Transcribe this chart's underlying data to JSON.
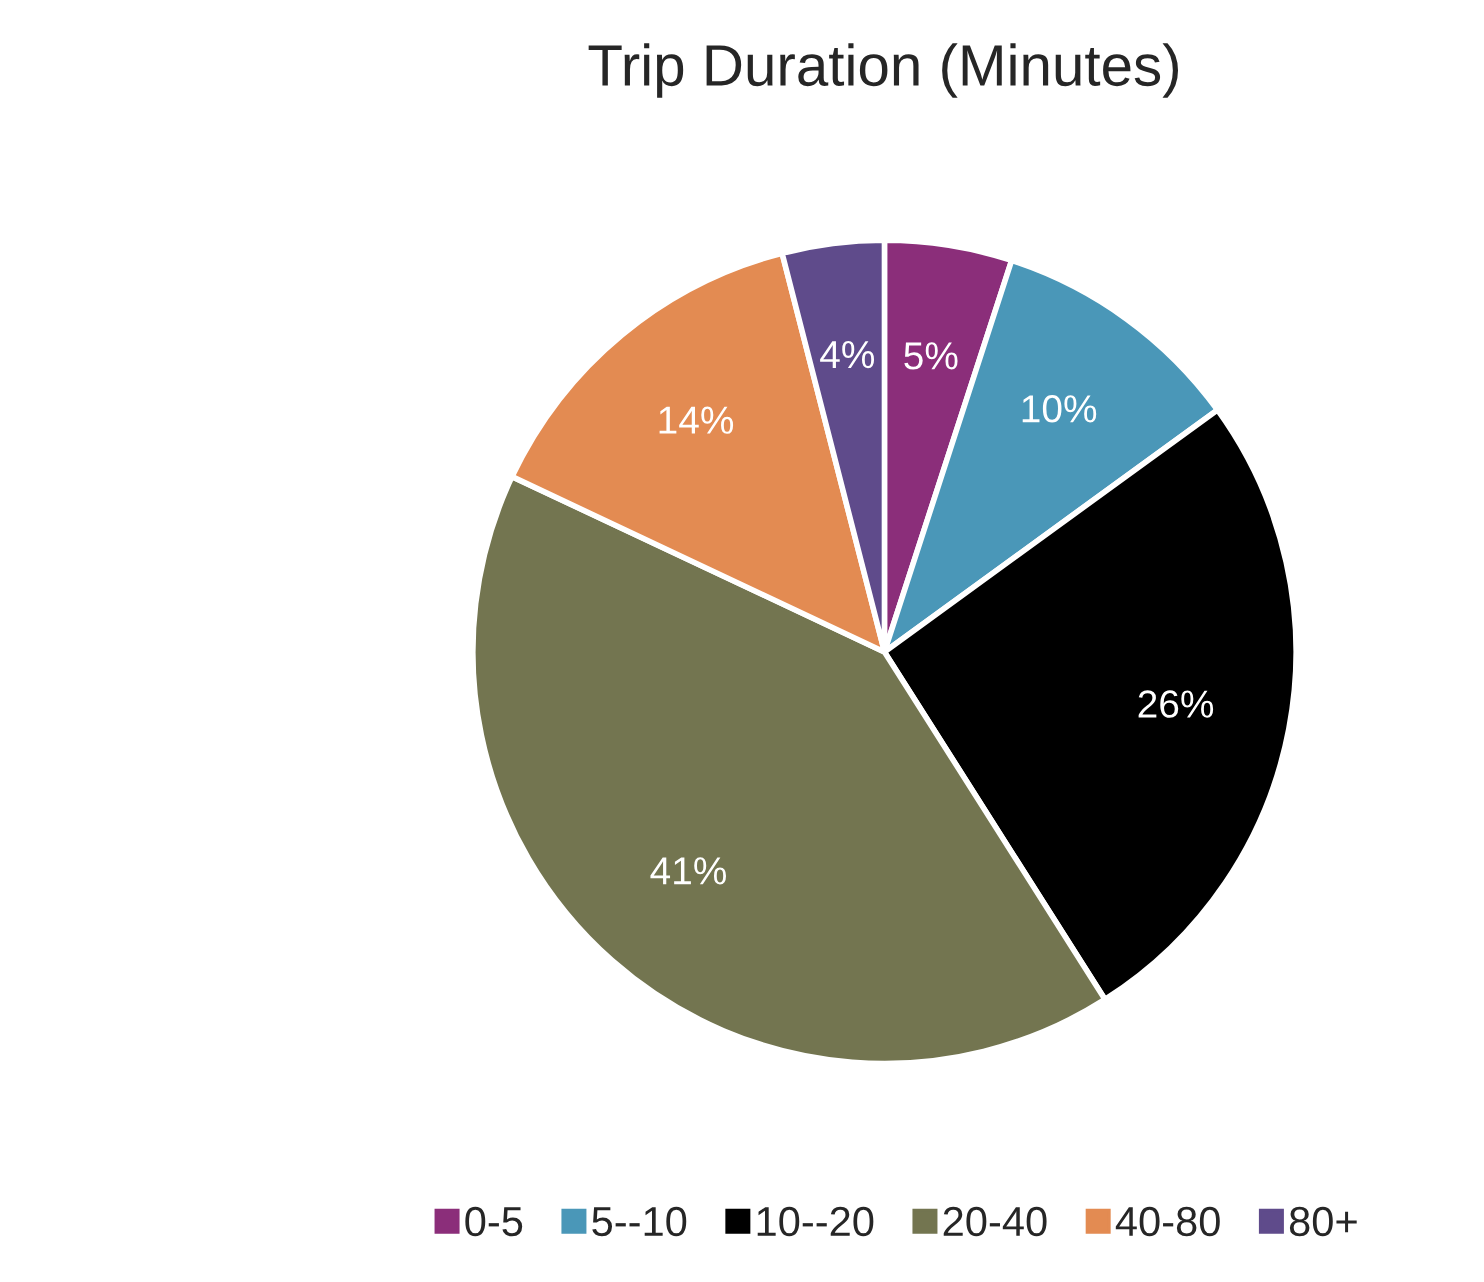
{
  "chart_data": {
    "type": "pie",
    "title": "Trip Duration (Minutes)",
    "categories": [
      "0-5",
      "5--10",
      "10--20",
      "20-40",
      "40-80",
      "80+"
    ],
    "values": [
      5,
      10,
      26,
      41,
      14,
      4
    ],
    "value_labels": [
      "5%",
      "10%",
      "26%",
      "41%",
      "14%",
      "4%"
    ],
    "colors": [
      "#8b2e7a",
      "#4a97b8",
      "#000000",
      "#737550",
      "#e38b52",
      "#5f4b8b"
    ],
    "legend": "bottom"
  }
}
